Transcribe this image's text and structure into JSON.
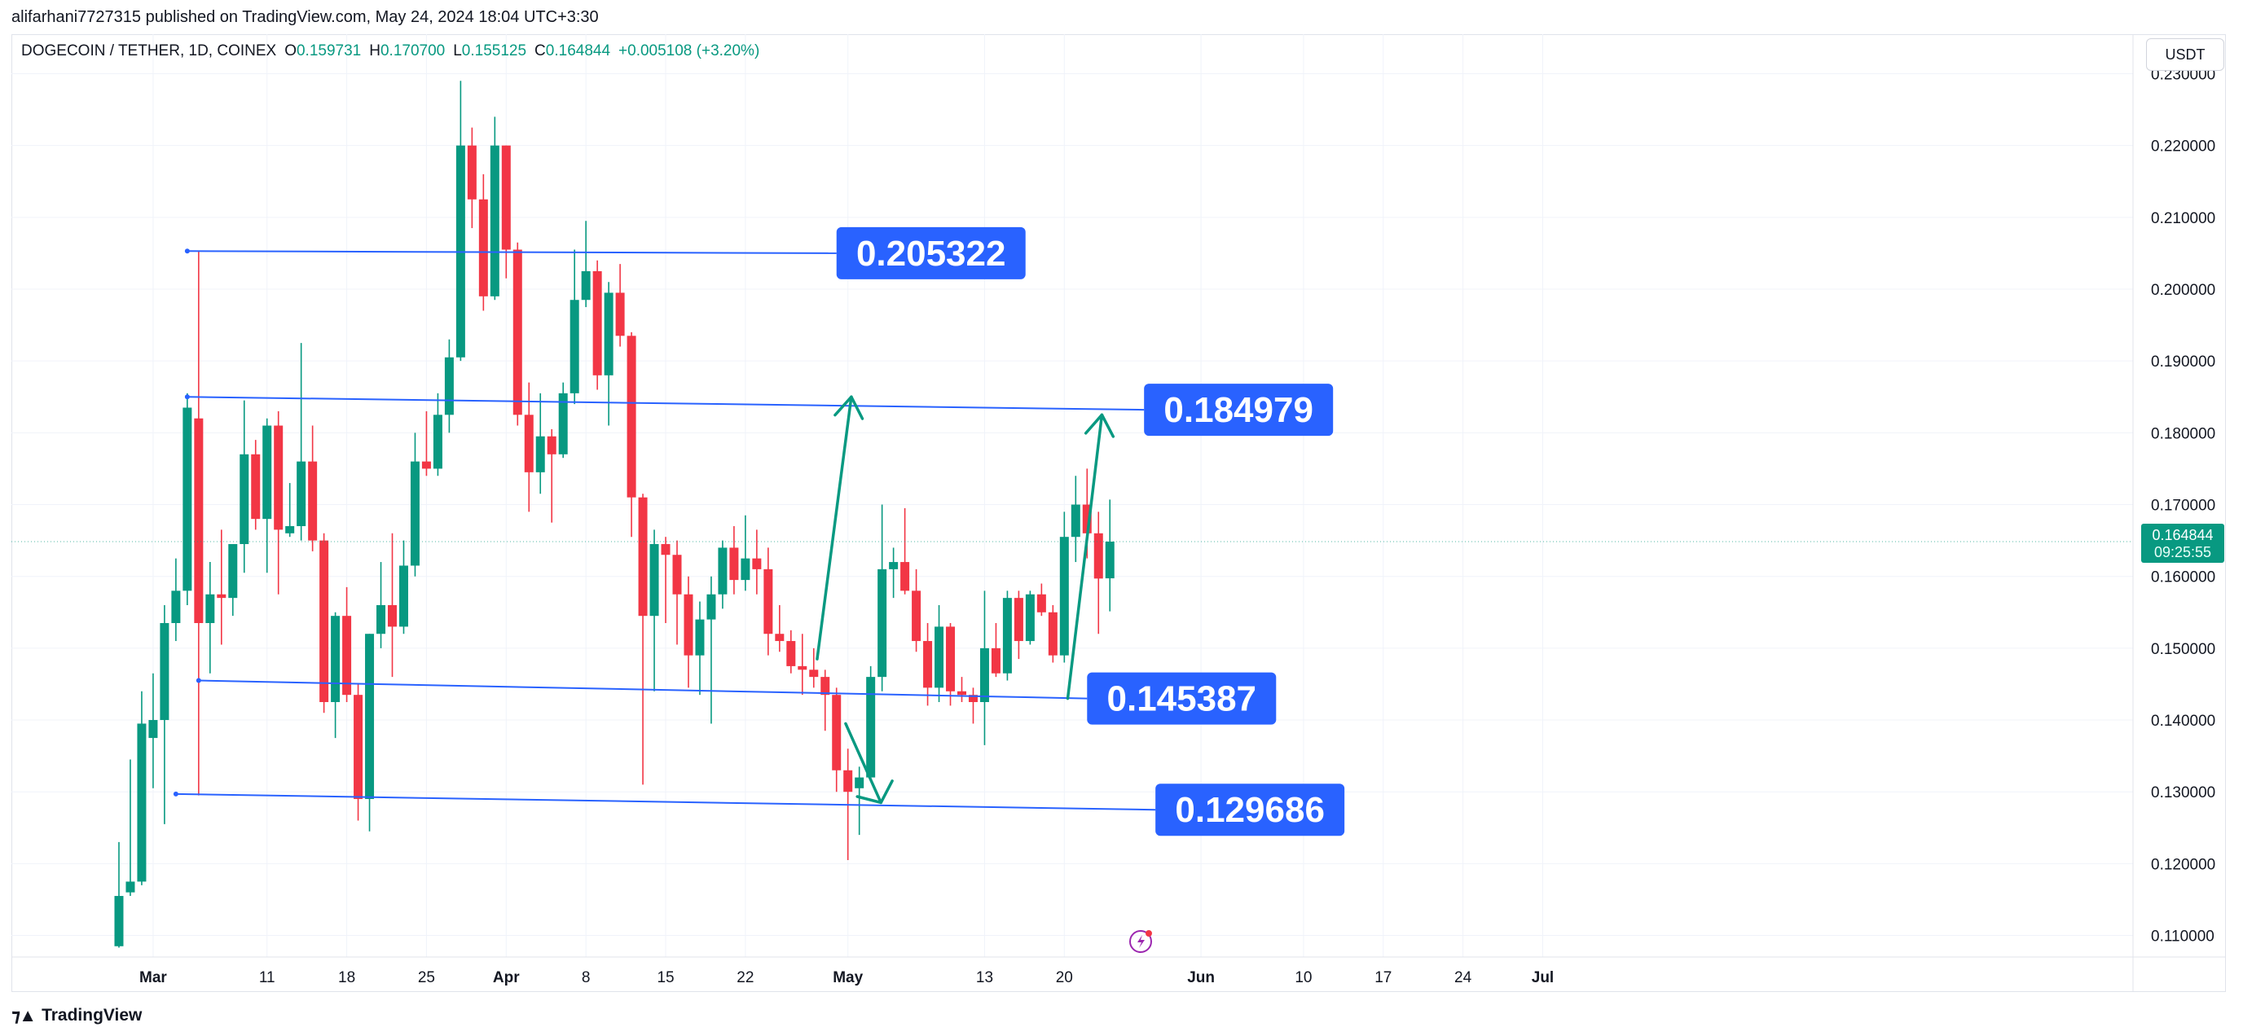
{
  "publisher_line": "alifarhani7727315 published on TradingView.com, May 24, 2024 18:04 UTC+3:30",
  "legend": {
    "symbol": "DOGECOIN / TETHER, 1D, COINEX",
    "open_label": "O",
    "open": "0.159731",
    "high_label": "H",
    "high": "0.170700",
    "low_label": "L",
    "low": "0.155125",
    "close_label": "C",
    "close": "0.164844",
    "change": "+0.005108 (+3.20%)"
  },
  "currency_button": "USDT",
  "footer_brand": "TradingView",
  "colors": {
    "up": "#089981",
    "down": "#f23645",
    "drawing": "#2962ff",
    "arrow": "#089981",
    "axis_text": "#131722"
  },
  "chart_data": {
    "type": "candlestick",
    "x_unit": "day index, 0 = 2024-02-26",
    "ylim": [
      0.107,
      0.2355
    ],
    "y_ticks": [
      "0.110000",
      "0.120000",
      "0.130000",
      "0.140000",
      "0.150000",
      "0.160000",
      "0.170000",
      "0.180000",
      "0.190000",
      "0.200000",
      "0.210000",
      "0.220000",
      "0.230000"
    ],
    "x_ticks": [
      {
        "label": "Mar",
        "day": 4
      },
      {
        "label": "11",
        "day": 14
      },
      {
        "label": "18",
        "day": 21
      },
      {
        "label": "25",
        "day": 28
      },
      {
        "label": "Apr",
        "day": 35
      },
      {
        "label": "8",
        "day": 42
      },
      {
        "label": "15",
        "day": 49
      },
      {
        "label": "22",
        "day": 56
      },
      {
        "label": "May",
        "day": 65
      },
      {
        "label": "13",
        "day": 77
      },
      {
        "label": "20",
        "day": 84
      },
      {
        "label": "Jun",
        "day": 96
      },
      {
        "label": "10",
        "day": 105
      },
      {
        "label": "17",
        "day": 112
      },
      {
        "label": "24",
        "day": 119
      },
      {
        "label": "Jul",
        "day": 126
      }
    ],
    "last_price": {
      "value": 0.164844,
      "label": "0.164844",
      "countdown": "09:25:55"
    },
    "candles": [
      {
        "d": "2024-02-27",
        "o": 0.1085,
        "h": 0.123,
        "l": 0.1083,
        "c": 0.1155
      },
      {
        "d": "2024-02-28",
        "o": 0.116,
        "h": 0.1345,
        "l": 0.1155,
        "c": 0.1175
      },
      {
        "d": "2024-02-29",
        "o": 0.1175,
        "h": 0.144,
        "l": 0.117,
        "c": 0.1395
      },
      {
        "d": "2024-03-01",
        "o": 0.1375,
        "h": 0.1465,
        "l": 0.1305,
        "c": 0.14
      },
      {
        "d": "2024-03-02",
        "o": 0.14,
        "h": 0.156,
        "l": 0.1255,
        "c": 0.1535
      },
      {
        "d": "2024-03-03",
        "o": 0.1535,
        "h": 0.1625,
        "l": 0.151,
        "c": 0.158
      },
      {
        "d": "2024-03-04",
        "o": 0.158,
        "h": 0.1855,
        "l": 0.156,
        "c": 0.1835
      },
      {
        "d": "2024-03-05",
        "o": 0.182,
        "h": 0.2053,
        "l": 0.1295,
        "c": 0.1535
      },
      {
        "d": "2024-03-06",
        "o": 0.1535,
        "h": 0.162,
        "l": 0.1465,
        "c": 0.1575
      },
      {
        "d": "2024-03-07",
        "o": 0.1575,
        "h": 0.1665,
        "l": 0.1505,
        "c": 0.157
      },
      {
        "d": "2024-03-08",
        "o": 0.157,
        "h": 0.164,
        "l": 0.1545,
        "c": 0.1645
      },
      {
        "d": "2024-03-09",
        "o": 0.1645,
        "h": 0.1845,
        "l": 0.1605,
        "c": 0.177
      },
      {
        "d": "2024-03-10",
        "o": 0.177,
        "h": 0.179,
        "l": 0.1665,
        "c": 0.168
      },
      {
        "d": "2024-03-11",
        "o": 0.168,
        "h": 0.182,
        "l": 0.1605,
        "c": 0.181
      },
      {
        "d": "2024-03-12",
        "o": 0.181,
        "h": 0.183,
        "l": 0.1575,
        "c": 0.1665
      },
      {
        "d": "2024-03-13",
        "o": 0.166,
        "h": 0.173,
        "l": 0.1655,
        "c": 0.167
      },
      {
        "d": "2024-03-14",
        "o": 0.167,
        "h": 0.1925,
        "l": 0.165,
        "c": 0.176
      },
      {
        "d": "2024-03-15",
        "o": 0.176,
        "h": 0.181,
        "l": 0.1635,
        "c": 0.165
      },
      {
        "d": "2024-03-16",
        "o": 0.165,
        "h": 0.166,
        "l": 0.141,
        "c": 0.1425
      },
      {
        "d": "2024-03-17",
        "o": 0.1425,
        "h": 0.155,
        "l": 0.1375,
        "c": 0.1545
      },
      {
        "d": "2024-03-18",
        "o": 0.1545,
        "h": 0.1585,
        "l": 0.1425,
        "c": 0.1435
      },
      {
        "d": "2024-03-19",
        "o": 0.1435,
        "h": 0.145,
        "l": 0.126,
        "c": 0.129
      },
      {
        "d": "2024-03-20",
        "o": 0.129,
        "h": 0.152,
        "l": 0.1245,
        "c": 0.152
      },
      {
        "d": "2024-03-21",
        "o": 0.152,
        "h": 0.162,
        "l": 0.15,
        "c": 0.156
      },
      {
        "d": "2024-03-22",
        "o": 0.156,
        "h": 0.166,
        "l": 0.146,
        "c": 0.153
      },
      {
        "d": "2024-03-23",
        "o": 0.153,
        "h": 0.165,
        "l": 0.152,
        "c": 0.1615
      },
      {
        "d": "2024-03-24",
        "o": 0.1615,
        "h": 0.18,
        "l": 0.16,
        "c": 0.176
      },
      {
        "d": "2024-03-25",
        "o": 0.176,
        "h": 0.183,
        "l": 0.174,
        "c": 0.175
      },
      {
        "d": "2024-03-26",
        "o": 0.175,
        "h": 0.1855,
        "l": 0.174,
        "c": 0.1825
      },
      {
        "d": "2024-03-27",
        "o": 0.1825,
        "h": 0.193,
        "l": 0.18,
        "c": 0.1905
      },
      {
        "d": "2024-03-28",
        "o": 0.1905,
        "h": 0.229,
        "l": 0.19,
        "c": 0.22
      },
      {
        "d": "2024-03-29",
        "o": 0.22,
        "h": 0.2225,
        "l": 0.2085,
        "c": 0.2125
      },
      {
        "d": "2024-03-30",
        "o": 0.2125,
        "h": 0.216,
        "l": 0.197,
        "c": 0.199
      },
      {
        "d": "2024-03-31",
        "o": 0.199,
        "h": 0.224,
        "l": 0.1985,
        "c": 0.22
      },
      {
        "d": "2024-04-01",
        "o": 0.22,
        "h": 0.22,
        "l": 0.2015,
        "c": 0.2055
      },
      {
        "d": "2024-04-02",
        "o": 0.2055,
        "h": 0.2065,
        "l": 0.181,
        "c": 0.1825
      },
      {
        "d": "2024-04-03",
        "o": 0.1825,
        "h": 0.187,
        "l": 0.169,
        "c": 0.1745
      },
      {
        "d": "2024-04-04",
        "o": 0.1745,
        "h": 0.1855,
        "l": 0.1715,
        "c": 0.1795
      },
      {
        "d": "2024-04-05",
        "o": 0.1795,
        "h": 0.1805,
        "l": 0.1675,
        "c": 0.177
      },
      {
        "d": "2024-04-06",
        "o": 0.177,
        "h": 0.187,
        "l": 0.1765,
        "c": 0.1855
      },
      {
        "d": "2024-04-07",
        "o": 0.1855,
        "h": 0.2055,
        "l": 0.184,
        "c": 0.1985
      },
      {
        "d": "2024-04-08",
        "o": 0.1985,
        "h": 0.2095,
        "l": 0.1975,
        "c": 0.2025
      },
      {
        "d": "2024-04-09",
        "o": 0.2025,
        "h": 0.204,
        "l": 0.186,
        "c": 0.188
      },
      {
        "d": "2024-04-10",
        "o": 0.188,
        "h": 0.201,
        "l": 0.181,
        "c": 0.1995
      },
      {
        "d": "2024-04-11",
        "o": 0.1995,
        "h": 0.2035,
        "l": 0.192,
        "c": 0.1935
      },
      {
        "d": "2024-04-12",
        "o": 0.1935,
        "h": 0.194,
        "l": 0.1655,
        "c": 0.171
      },
      {
        "d": "2024-04-13",
        "o": 0.171,
        "h": 0.1715,
        "l": 0.131,
        "c": 0.1545
      },
      {
        "d": "2024-04-14",
        "o": 0.1545,
        "h": 0.1665,
        "l": 0.144,
        "c": 0.1645
      },
      {
        "d": "2024-04-15",
        "o": 0.1645,
        "h": 0.1655,
        "l": 0.1535,
        "c": 0.163
      },
      {
        "d": "2024-04-16",
        "o": 0.163,
        "h": 0.165,
        "l": 0.1505,
        "c": 0.1575
      },
      {
        "d": "2024-04-17",
        "o": 0.1575,
        "h": 0.16,
        "l": 0.1445,
        "c": 0.149
      },
      {
        "d": "2024-04-18",
        "o": 0.149,
        "h": 0.1565,
        "l": 0.1435,
        "c": 0.154
      },
      {
        "d": "2024-04-19",
        "o": 0.154,
        "h": 0.16,
        "l": 0.1395,
        "c": 0.1575
      },
      {
        "d": "2024-04-20",
        "o": 0.1575,
        "h": 0.165,
        "l": 0.1555,
        "c": 0.164
      },
      {
        "d": "2024-04-21",
        "o": 0.164,
        "h": 0.167,
        "l": 0.1575,
        "c": 0.1595
      },
      {
        "d": "2024-04-22",
        "o": 0.1595,
        "h": 0.1685,
        "l": 0.158,
        "c": 0.1625
      },
      {
        "d": "2024-04-23",
        "o": 0.1625,
        "h": 0.1665,
        "l": 0.1575,
        "c": 0.161
      },
      {
        "d": "2024-04-24",
        "o": 0.161,
        "h": 0.164,
        "l": 0.149,
        "c": 0.152
      },
      {
        "d": "2024-04-25",
        "o": 0.152,
        "h": 0.156,
        "l": 0.1495,
        "c": 0.151
      },
      {
        "d": "2024-04-26",
        "o": 0.151,
        "h": 0.1525,
        "l": 0.1465,
        "c": 0.1475
      },
      {
        "d": "2024-04-27",
        "o": 0.1475,
        "h": 0.152,
        "l": 0.1435,
        "c": 0.147
      },
      {
        "d": "2024-04-28",
        "o": 0.147,
        "h": 0.15,
        "l": 0.1445,
        "c": 0.146
      },
      {
        "d": "2024-04-29",
        "o": 0.146,
        "h": 0.147,
        "l": 0.1385,
        "c": 0.1435
      },
      {
        "d": "2024-04-30",
        "o": 0.1435,
        "h": 0.1445,
        "l": 0.13,
        "c": 0.133
      },
      {
        "d": "2024-05-01",
        "o": 0.133,
        "h": 0.136,
        "l": 0.1205,
        "c": 0.13
      },
      {
        "d": "2024-05-02",
        "o": 0.1305,
        "h": 0.1335,
        "l": 0.124,
        "c": 0.132
      },
      {
        "d": "2024-05-03",
        "o": 0.132,
        "h": 0.1475,
        "l": 0.1315,
        "c": 0.146
      },
      {
        "d": "2024-05-04",
        "o": 0.146,
        "h": 0.17,
        "l": 0.144,
        "c": 0.161
      },
      {
        "d": "2024-05-05",
        "o": 0.161,
        "h": 0.164,
        "l": 0.157,
        "c": 0.162
      },
      {
        "d": "2024-05-06",
        "o": 0.162,
        "h": 0.1695,
        "l": 0.1575,
        "c": 0.158
      },
      {
        "d": "2024-05-07",
        "o": 0.158,
        "h": 0.161,
        "l": 0.1495,
        "c": 0.151
      },
      {
        "d": "2024-05-08",
        "o": 0.151,
        "h": 0.1535,
        "l": 0.142,
        "c": 0.1445
      },
      {
        "d": "2024-05-09",
        "o": 0.1445,
        "h": 0.156,
        "l": 0.1425,
        "c": 0.153
      },
      {
        "d": "2024-05-10",
        "o": 0.153,
        "h": 0.1535,
        "l": 0.142,
        "c": 0.144
      },
      {
        "d": "2024-05-11",
        "o": 0.144,
        "h": 0.146,
        "l": 0.1425,
        "c": 0.1435
      },
      {
        "d": "2024-05-12",
        "o": 0.1435,
        "h": 0.1445,
        "l": 0.1395,
        "c": 0.1425
      },
      {
        "d": "2024-05-13",
        "o": 0.1425,
        "h": 0.158,
        "l": 0.1365,
        "c": 0.15
      },
      {
        "d": "2024-05-14",
        "o": 0.15,
        "h": 0.1535,
        "l": 0.146,
        "c": 0.1465
      },
      {
        "d": "2024-05-15",
        "o": 0.1465,
        "h": 0.158,
        "l": 0.1455,
        "c": 0.157
      },
      {
        "d": "2024-05-16",
        "o": 0.157,
        "h": 0.158,
        "l": 0.1485,
        "c": 0.151
      },
      {
        "d": "2024-05-17",
        "o": 0.151,
        "h": 0.158,
        "l": 0.1505,
        "c": 0.1575
      },
      {
        "d": "2024-05-18",
        "o": 0.1575,
        "h": 0.159,
        "l": 0.1545,
        "c": 0.155
      },
      {
        "d": "2024-05-19",
        "o": 0.155,
        "h": 0.156,
        "l": 0.148,
        "c": 0.149
      },
      {
        "d": "2024-05-20",
        "o": 0.149,
        "h": 0.169,
        "l": 0.148,
        "c": 0.1655
      },
      {
        "d": "2024-05-21",
        "o": 0.1655,
        "h": 0.174,
        "l": 0.162,
        "c": 0.17
      },
      {
        "d": "2024-05-22",
        "o": 0.17,
        "h": 0.175,
        "l": 0.1625,
        "c": 0.166
      },
      {
        "d": "2024-05-23",
        "o": 0.166,
        "h": 0.169,
        "l": 0.152,
        "c": 0.1597
      },
      {
        "d": "2024-05-24",
        "o": 0.159731,
        "h": 0.1707,
        "l": 0.155125,
        "c": 0.164844
      }
    ],
    "levels": [
      {
        "label": "0.205322",
        "from": [
          7,
          0.2053
        ],
        "to": [
          64,
          0.205
        ]
      },
      {
        "label": "0.184979",
        "from": [
          7,
          0.185
        ],
        "to": [
          91,
          0.1832
        ]
      },
      {
        "label": "0.145387",
        "from": [
          8,
          0.1455
        ],
        "to": [
          86,
          0.143
        ]
      },
      {
        "label": "0.129686",
        "from": [
          6,
          0.1297
        ],
        "to": [
          92,
          0.1275
        ]
      }
    ],
    "arrows": [
      {
        "points": [
          [
            62.3,
            0.1485
          ],
          [
            65.3,
            0.185
          ]
        ]
      },
      {
        "points": [
          [
            64.8,
            0.1395
          ],
          [
            67.9,
            0.1285
          ]
        ],
        "head": "broad"
      },
      {
        "points": [
          [
            84.3,
            0.143
          ],
          [
            87.3,
            0.1825
          ]
        ]
      }
    ]
  }
}
